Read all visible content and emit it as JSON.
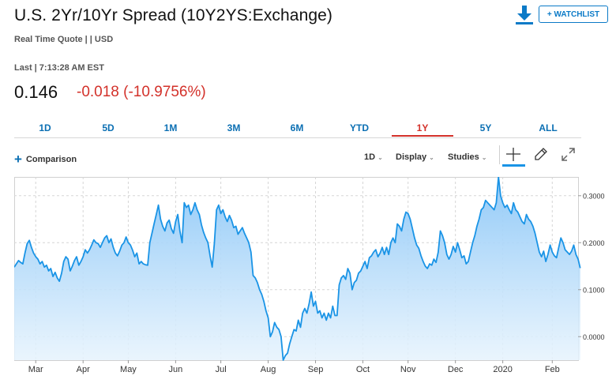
{
  "header": {
    "title": "U.S. 2Yr/10Yr Spread (10Y2YS:Exchange)",
    "subtitle": "Real Time Quote | | USD",
    "last": "Last | 7:13:28 AM EST",
    "price": "0.146",
    "change": "-0.018 (-10.9756%)",
    "watchlist_label": "+ WATCHLIST",
    "download_icon": "download-icon"
  },
  "colors": {
    "accent": "#0b7ac7",
    "negative": "#d3312a",
    "line": "#1a94e6"
  },
  "tabs": [
    {
      "label": "1D",
      "active": false
    },
    {
      "label": "5D",
      "active": false
    },
    {
      "label": "1M",
      "active": false
    },
    {
      "label": "3M",
      "active": false
    },
    {
      "label": "6M",
      "active": false
    },
    {
      "label": "YTD",
      "active": false
    },
    {
      "label": "1Y",
      "active": true
    },
    {
      "label": "5Y",
      "active": false
    },
    {
      "label": "ALL",
      "active": false
    }
  ],
  "toolbar": {
    "comparison_label": "Comparison",
    "interval_label": "1D",
    "display_label": "Display",
    "studies_label": "Studies",
    "crosshair_icon": "crosshair-icon",
    "draw_icon": "pencil-icon",
    "expand_icon": "expand-icon"
  },
  "chart_data": {
    "type": "area",
    "title": "",
    "xlabel": "",
    "ylabel": "",
    "ylim": [
      -0.05,
      0.34
    ],
    "yticks": [
      0.0,
      0.1,
      0.2,
      0.3
    ],
    "ytick_labels": [
      "0.0000",
      "0.1000",
      "0.2000",
      "0.3000"
    ],
    "xtick_labels": [
      "Mar",
      "Apr",
      "May",
      "Jun",
      "Jul",
      "Aug",
      "Sep",
      "Oct",
      "Nov",
      "Dec",
      "2020",
      "Feb"
    ],
    "xtick_positions": [
      10,
      32,
      53,
      75,
      96,
      118,
      140,
      162,
      183,
      205,
      227,
      250
    ],
    "grid": true,
    "legend": "none",
    "x_total": 263,
    "series": [
      {
        "values": [
          0.148,
          0.155,
          0.162,
          0.158,
          0.155,
          0.178,
          0.198,
          0.205,
          0.19,
          0.178,
          0.17,
          0.165,
          0.155,
          0.16,
          0.148,
          0.152,
          0.14,
          0.145,
          0.128,
          0.137,
          0.125,
          0.118,
          0.135,
          0.16,
          0.17,
          0.165,
          0.14,
          0.15,
          0.162,
          0.17,
          0.152,
          0.16,
          0.17,
          0.185,
          0.178,
          0.185,
          0.195,
          0.206,
          0.2,
          0.198,
          0.19,
          0.2,
          0.21,
          0.215,
          0.2,
          0.208,
          0.19,
          0.178,
          0.172,
          0.182,
          0.195,
          0.2,
          0.212,
          0.2,
          0.195,
          0.184,
          0.17,
          0.178,
          0.155,
          0.16,
          0.155,
          0.153,
          0.152,
          0.2,
          0.22,
          0.24,
          0.26,
          0.28,
          0.25,
          0.235,
          0.225,
          0.242,
          0.248,
          0.23,
          0.22,
          0.245,
          0.26,
          0.225,
          0.2,
          0.285,
          0.275,
          0.28,
          0.26,
          0.27,
          0.285,
          0.27,
          0.26,
          0.238,
          0.222,
          0.21,
          0.2,
          0.172,
          0.148,
          0.198,
          0.27,
          0.28,
          0.262,
          0.27,
          0.255,
          0.245,
          0.258,
          0.248,
          0.232,
          0.235,
          0.218,
          0.225,
          0.232,
          0.22,
          0.21,
          0.2,
          0.18,
          0.13,
          0.125,
          0.115,
          0.1,
          0.09,
          0.075,
          0.055,
          0.04,
          0.0,
          0.01,
          0.03,
          0.02,
          0.015,
          0.0,
          -0.05,
          -0.04,
          -0.035,
          -0.015,
          0.0,
          0.015,
          0.012,
          0.035,
          0.02,
          0.05,
          0.06,
          0.05,
          0.07,
          0.095,
          0.065,
          0.075,
          0.05,
          0.055,
          0.04,
          0.05,
          0.035,
          0.05,
          0.04,
          0.065,
          0.045,
          0.045,
          0.11,
          0.125,
          0.13,
          0.122,
          0.145,
          0.135,
          0.1,
          0.115,
          0.12,
          0.135,
          0.14,
          0.15,
          0.16,
          0.145,
          0.168,
          0.172,
          0.18,
          0.185,
          0.17,
          0.178,
          0.19,
          0.175,
          0.19,
          0.175,
          0.2,
          0.21,
          0.2,
          0.24,
          0.235,
          0.225,
          0.25,
          0.265,
          0.262,
          0.25,
          0.23,
          0.21,
          0.195,
          0.188,
          0.172,
          0.16,
          0.15,
          0.145,
          0.155,
          0.152,
          0.165,
          0.158,
          0.18,
          0.225,
          0.215,
          0.2,
          0.175,
          0.165,
          0.175,
          0.192,
          0.18,
          0.2,
          0.185,
          0.168,
          0.172,
          0.155,
          0.16,
          0.18,
          0.2,
          0.215,
          0.235,
          0.25,
          0.27,
          0.275,
          0.29,
          0.285,
          0.28,
          0.275,
          0.27,
          0.285,
          0.34,
          0.3,
          0.285,
          0.275,
          0.28,
          0.27,
          0.262,
          0.285,
          0.27,
          0.265,
          0.255,
          0.245,
          0.24,
          0.26,
          0.25,
          0.245,
          0.235,
          0.22,
          0.2,
          0.18,
          0.17,
          0.182,
          0.16,
          0.175,
          0.195,
          0.18,
          0.172,
          0.168,
          0.19,
          0.21,
          0.2,
          0.185,
          0.18,
          0.175,
          0.182,
          0.195,
          0.175,
          0.165,
          0.146
        ]
      }
    ]
  }
}
